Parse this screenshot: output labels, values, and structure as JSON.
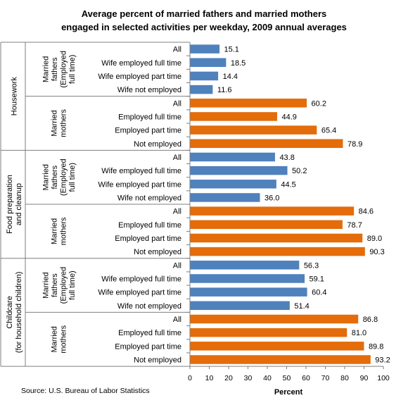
{
  "chart_data": {
    "type": "bar",
    "orientation": "horizontal",
    "title_line1": "Average percent of married fathers and married mothers",
    "title_line2": "engaged in selected activities per weekday, 2009 annual averages",
    "xlabel": "Percent",
    "xlim": [
      0,
      100
    ],
    "xticks": [
      0,
      10,
      20,
      30,
      40,
      50,
      60,
      70,
      80,
      90,
      100
    ],
    "source": "Source: U.S. Bureau of Labor Statistics",
    "colors": {
      "fathers": "#4f81bd",
      "mothers": "#e46c0a"
    },
    "groups": [
      {
        "activity": [
          "Housework"
        ],
        "subgroups": [
          {
            "name": [
              "Married",
              "fathers",
              "(Employed",
              "full time)"
            ],
            "series": "fathers",
            "items": [
              {
                "label": "All",
                "value": 15.1
              },
              {
                "label": "Wife employed full time",
                "value": 18.5
              },
              {
                "label": "Wife employed part time",
                "value": 14.4
              },
              {
                "label": "Wife not employed",
                "value": 11.6
              }
            ]
          },
          {
            "name": [
              "Married",
              "mothers"
            ],
            "series": "mothers",
            "items": [
              {
                "label": "All",
                "value": 60.2
              },
              {
                "label": "Employed full time",
                "value": 44.9
              },
              {
                "label": "Employed part time",
                "value": 65.4
              },
              {
                "label": "Not employed",
                "value": 78.9
              }
            ]
          }
        ]
      },
      {
        "activity": [
          "Food preparation",
          "and cleanup"
        ],
        "subgroups": [
          {
            "name": [
              "Married",
              "fathers",
              "(Employed",
              "full time)"
            ],
            "series": "fathers",
            "items": [
              {
                "label": "All",
                "value": 43.8
              },
              {
                "label": "Wife employed full time",
                "value": 50.2
              },
              {
                "label": "Wife employed part time",
                "value": 44.5
              },
              {
                "label": "Wife not employed",
                "value": 36.0
              }
            ]
          },
          {
            "name": [
              "Married",
              "mothers"
            ],
            "series": "mothers",
            "items": [
              {
                "label": "All",
                "value": 84.6
              },
              {
                "label": "Employed full time",
                "value": 78.7
              },
              {
                "label": "Employed part time",
                "value": 89.0
              },
              {
                "label": "Not employed",
                "value": 90.3
              }
            ]
          }
        ]
      },
      {
        "activity": [
          "Childcare",
          "(for household children)"
        ],
        "subgroups": [
          {
            "name": [
              "Married",
              "fathers",
              "(Employed",
              "full time)"
            ],
            "series": "fathers",
            "items": [
              {
                "label": "All",
                "value": 56.3
              },
              {
                "label": "Wife employed full time",
                "value": 59.1
              },
              {
                "label": "Wife employed part time",
                "value": 60.4
              },
              {
                "label": "Wife not employed",
                "value": 51.4
              }
            ]
          },
          {
            "name": [
              "Married",
              "mothers"
            ],
            "series": "mothers",
            "items": [
              {
                "label": "All",
                "value": 86.8
              },
              {
                "label": "Employed full time",
                "value": 81.0
              },
              {
                "label": "Employed part time",
                "value": 89.8
              },
              {
                "label": "Not employed",
                "value": 93.2
              }
            ]
          }
        ]
      }
    ]
  }
}
